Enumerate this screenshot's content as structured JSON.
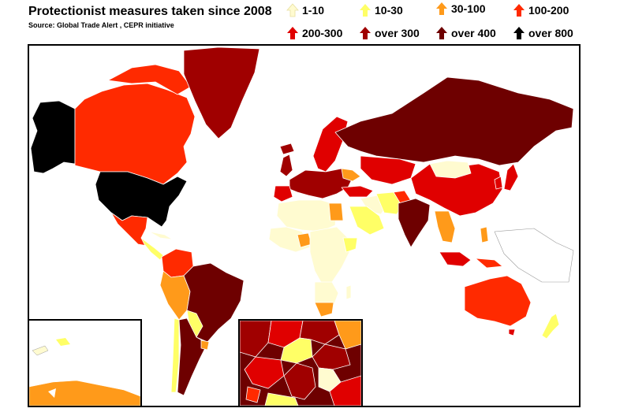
{
  "title": "Protectionist measures taken since 2008",
  "source": "Source: Global Trade Alert , CEPR initiative",
  "legend": [
    {
      "label": "1-10",
      "color": "#fffbd0"
    },
    {
      "label": "10-30",
      "color": "#ffff66"
    },
    {
      "label": "30-100",
      "color": "#ff9a1a"
    },
    {
      "label": "100-200",
      "color": "#ff2a00"
    },
    {
      "label": "200-300",
      "color": "#e00000"
    },
    {
      "label": "over 300",
      "color": "#a00000"
    },
    {
      "label": "over 400",
      "color": "#6e0000"
    },
    {
      "label": "over 800",
      "color": "#000000"
    }
  ],
  "insets": [
    {
      "name": "caribbean-inset"
    },
    {
      "name": "europe-inset"
    }
  ]
}
